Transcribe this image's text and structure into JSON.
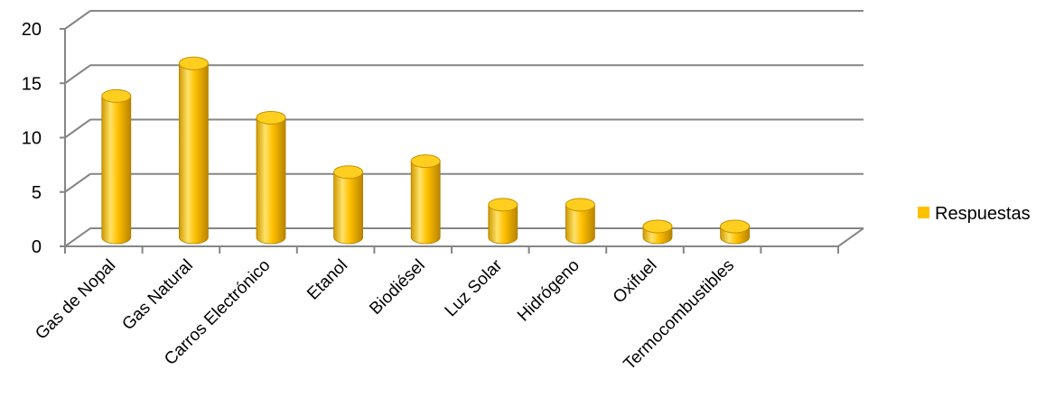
{
  "chart_data": {
    "type": "bar",
    "style": "3d-cylinder",
    "categories": [
      "Gas de Nopal",
      "Gas Natural",
      "Carros Electrónico",
      "Etanol",
      "Biodiésel",
      "Luz Solar",
      "Hidrógeno",
      "Oxifuel",
      "Termocombustibles"
    ],
    "series": [
      {
        "name": "Respuestas",
        "values": [
          13,
          16,
          11,
          6,
          7,
          3,
          3,
          1,
          1
        ]
      }
    ],
    "title": "",
    "xlabel": "",
    "ylabel": "",
    "ylim": [
      0,
      20
    ],
    "yticks": [
      0,
      5,
      10,
      15,
      20
    ],
    "grid": true,
    "legend_position": "right",
    "colors": {
      "bar": "#ffc000",
      "bar_dark": "#c98e00",
      "bar_light": "#ffe066",
      "grid": "#868686"
    }
  }
}
